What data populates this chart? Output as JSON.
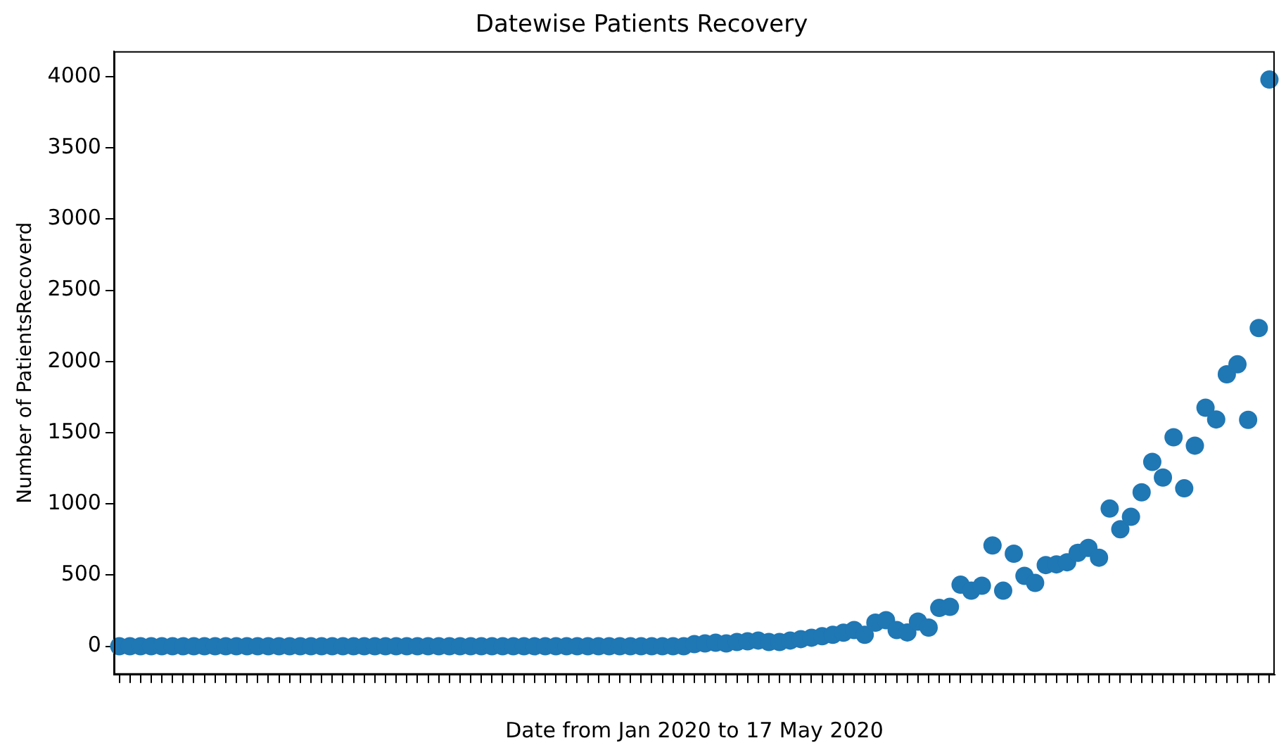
{
  "chart_data": {
    "type": "scatter",
    "title": "Datewise Patients Recovery",
    "xlabel": "Date from Jan 2020 to 17 May 2020",
    "ylabel": "Number of PatientsRecoverd",
    "categories": [
      null,
      null,
      null,
      null,
      null,
      null,
      null,
      null,
      null,
      null,
      null,
      null,
      null,
      null,
      null,
      null,
      null,
      null,
      null,
      null,
      null,
      null,
      null,
      null,
      null,
      null,
      null,
      null,
      null,
      null,
      null,
      null,
      null,
      null,
      null,
      null,
      null,
      null,
      null,
      null,
      null,
      null,
      null,
      null,
      null,
      null,
      null,
      null,
      null,
      null,
      null,
      null,
      null,
      null,
      null,
      null,
      null,
      null,
      null,
      null,
      null,
      null,
      null,
      null,
      null,
      null,
      null,
      null,
      null,
      null,
      null,
      null,
      null,
      null,
      null,
      null,
      null,
      null,
      null,
      null,
      null,
      null,
      null,
      null,
      null,
      null,
      null,
      null,
      null,
      null,
      null,
      null,
      null,
      null,
      null,
      null,
      null,
      null,
      null,
      null,
      null,
      null,
      null,
      null,
      null,
      null,
      null,
      null,
      null
    ],
    "values": [
      0,
      0,
      0,
      0,
      0,
      0,
      0,
      0,
      0,
      0,
      0,
      0,
      0,
      0,
      0,
      0,
      0,
      0,
      0,
      0,
      0,
      0,
      0,
      0,
      0,
      0,
      0,
      0,
      0,
      0,
      0,
      0,
      0,
      0,
      0,
      0,
      0,
      0,
      0,
      0,
      0,
      0,
      0,
      0,
      0,
      0,
      0,
      0,
      0,
      0,
      0,
      0,
      0,
      0,
      15,
      20,
      25,
      20,
      30,
      35,
      40,
      30,
      30,
      40,
      50,
      60,
      70,
      80,
      95,
      114,
      80,
      166,
      183,
      114,
      97,
      173,
      131,
      269,
      277,
      432,
      390,
      425,
      708,
      390,
      650,
      494,
      445,
      570,
      575,
      590,
      656,
      691,
      622,
      967,
      822,
      909,
      1081,
      1295,
      1185,
      1468,
      1109,
      1409,
      1675,
      1593,
      1910,
      1980,
      1590,
      2235,
      3980
    ],
    "color": "#1f77b4",
    "marker": "circle",
    "grid": false,
    "legend": false,
    "ylim": [
      -199,
      4179
    ],
    "yticks": [
      0,
      500,
      1000,
      1500,
      2000,
      2500,
      3000,
      3500,
      4000
    ]
  }
}
